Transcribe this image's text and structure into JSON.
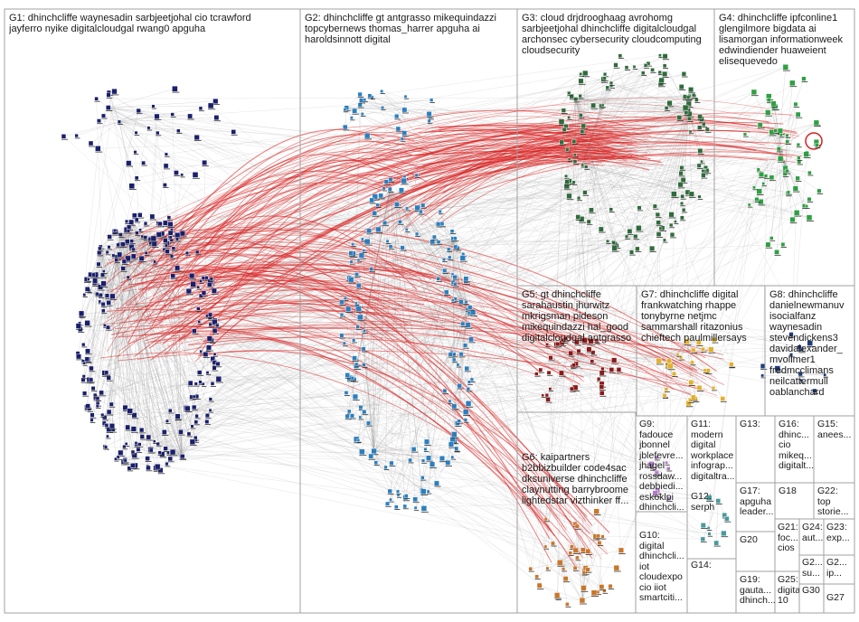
{
  "graph": {
    "groups": [
      {
        "id": "G1",
        "label": "G1: dhinchcliffe waynesadin sarbjeetjohal cio tcrawford\njayferro nyike digitalcloudgal rwang0 apguha"
      },
      {
        "id": "G2",
        "label": "G2: dhinchcliffe gt antgrasso mikequindazzi\ntopcybernews thomas_harrer apguha ai\nharoldsinnott digital"
      },
      {
        "id": "G3",
        "label": "G3: cloud drjdrooghaag avrohomg\nsarbjeetjohal dhinchcliffe digitalcloudgal\narchonsec cybersecurity cloudcomputing\ncloudsecurity"
      },
      {
        "id": "G4",
        "label": "G4: dhinchcliffe ipfconline1\nglengilmore bigdata ai\nlisamorgan informationweek\nedwindiender huaweient\nelisequevedo"
      },
      {
        "id": "G5",
        "label": "G5: gt dhinchcliffe\nsarahaustin jhurwitz\nmkrigsman pideson\nmikequindazzi hal_good\ndigitalcloudgal antgrasso"
      },
      {
        "id": "G7",
        "label": "G7: dhinchcliffe digital\nfrankwatching rhappe\ntonybyrne netjmc\nsammarshall ritazonius\nchieftech paulmillersays"
      },
      {
        "id": "G8",
        "label": "G8: dhinchcliffe\ndanielnewmanuv\nisocialfanz\nwaynesadin\nstevendickens3\ndavidalexander_\nmvollmer1\nfredmcclimans\nneilcattermull\noablanchard"
      },
      {
        "id": "G6",
        "label": "G6: kaipartners\nb2bbizbuilder code4sac\ndksuniverse dhinchcliffe\nclaynutting barrybroome\nlightedstar vizthinker ff..."
      },
      {
        "id": "G9",
        "label": "G9:\nfadouce\njbonnel\njblefevre...\njhagel\nrossdaw...\ndebbiedi...\neskoklpi\ndhinchcli..."
      },
      {
        "id": "G10",
        "label": "G10:\ndigital\ndhinchcli...\niot\ncloudexpo\ncio iiot\nsmartciti..."
      },
      {
        "id": "G11",
        "label": "G11:\nmodern\ndigital\nworkplace\ninfograp...\ndigitaltra..."
      },
      {
        "id": "G12",
        "label": "G12:\nserph"
      },
      {
        "id": "G13",
        "label": "G13:"
      },
      {
        "id": "G14",
        "label": "G14:"
      },
      {
        "id": "G16",
        "label": "G16:\ndhinc...\ncio\nmikeq...\ndigitalt..."
      },
      {
        "id": "G15",
        "label": "G15:\nanees..."
      },
      {
        "id": "G17",
        "label": "G17:\napguha\nleader..."
      },
      {
        "id": "G18",
        "label": "G18"
      },
      {
        "id": "G22",
        "label": "G22:\ntop\nstorie..."
      },
      {
        "id": "G20",
        "label": "G20"
      },
      {
        "id": "G21",
        "label": "G21:\nfoc...\ncios"
      },
      {
        "id": "G24",
        "label": "G24:\naut..."
      },
      {
        "id": "G23",
        "label": "G23:\nexp..."
      },
      {
        "id": "G19",
        "label": "G19:\ngauta...\ndhinch..."
      },
      {
        "id": "G25",
        "label": "G25:\ndigita...\n10"
      },
      {
        "id": "G2x",
        "label": "G2...\nsu..."
      },
      {
        "id": "G2y",
        "label": "G2...\nip..."
      },
      {
        "id": "G30",
        "label": "G30"
      },
      {
        "id": "G27",
        "label": "G27"
      }
    ]
  },
  "colors": {
    "edge_gray": "#9a9a9a",
    "edge_red": "#d81e1e",
    "g1_node": "#1a1f6b",
    "g2_node": "#2b7fbf",
    "g3_node": "#2f6b3b",
    "g4_node": "#2ea043",
    "g5_node": "#8b1a1a",
    "g6_node": "#c9762a",
    "g7_node": "#e2b12a",
    "box_border": "#a0a0a0"
  }
}
